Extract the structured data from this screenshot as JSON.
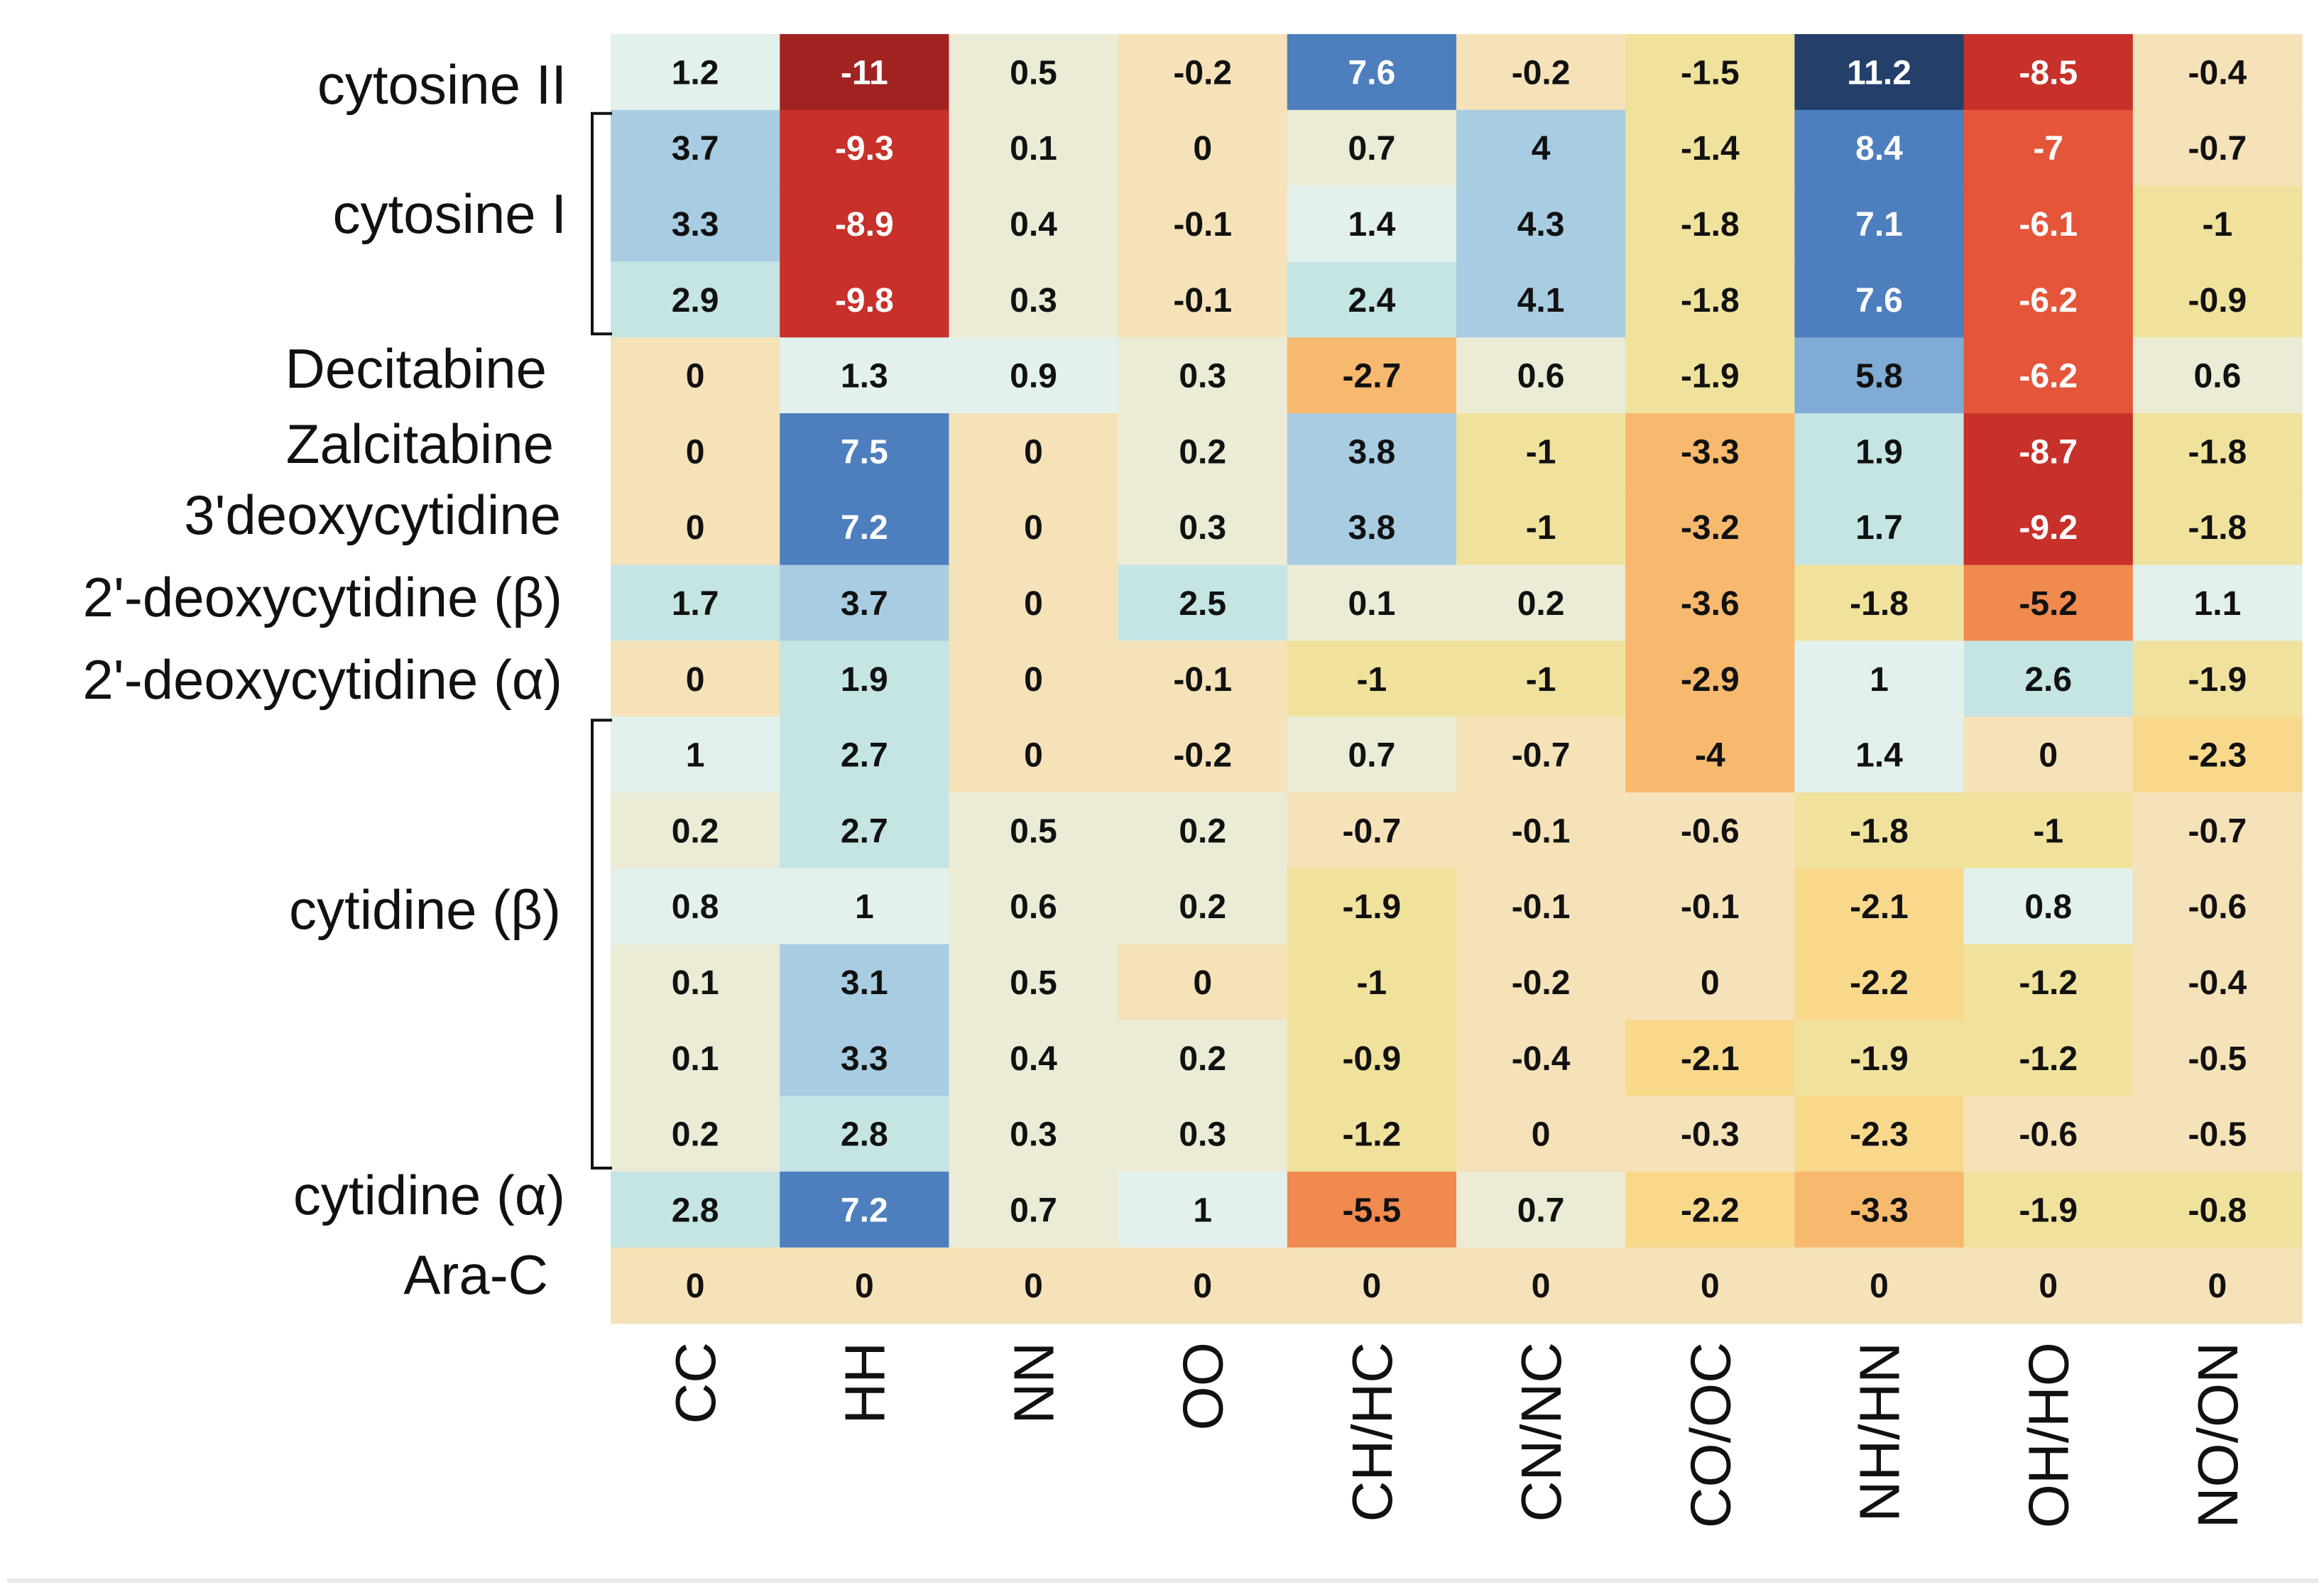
{
  "chart_data": {
    "type": "heatmap",
    "title": "",
    "columns": [
      "CC",
      "HH",
      "NN",
      "OO",
      "CH/HC",
      "CN/NC",
      "CO/OC",
      "NH/HN",
      "OH/HO",
      "NO/ON"
    ],
    "row_labels": [
      {
        "text": "cytosine II",
        "rows": [
          0
        ]
      },
      {
        "text": "cytosine I",
        "rows": [
          1,
          2,
          3
        ]
      },
      {
        "text": "Decitabine",
        "rows": [
          4
        ]
      },
      {
        "text": "Zalcitabine",
        "rows": [
          5
        ]
      },
      {
        "text": "3'deoxycytidine",
        "rows": [
          6
        ]
      },
      {
        "text": "2'-deoxycytidine (β)",
        "rows": [
          7
        ]
      },
      {
        "text": "2'-deoxycytidine (α)",
        "rows": [
          8
        ]
      },
      {
        "text": "cytidine (β)",
        "rows": [
          9,
          10,
          11,
          12,
          13,
          14
        ]
      },
      {
        "text": "cytidine (α)",
        "rows": [
          15
        ]
      },
      {
        "text": "Ara-C",
        "rows": [
          16
        ]
      }
    ],
    "values": [
      [
        1.2,
        -11,
        0.5,
        -0.2,
        7.6,
        -0.2,
        -1.5,
        11.2,
        -8.5,
        -0.4
      ],
      [
        3.7,
        -9.3,
        0.1,
        0,
        0.7,
        4,
        -1.4,
        8.4,
        -7,
        -0.7
      ],
      [
        3.3,
        -8.9,
        0.4,
        -0.1,
        1.4,
        4.3,
        -1.8,
        7.1,
        -6.1,
        -1
      ],
      [
        2.9,
        -9.8,
        0.3,
        -0.1,
        2.4,
        4.1,
        -1.8,
        7.6,
        -6.2,
        -0.9
      ],
      [
        0,
        1.3,
        0.9,
        0.3,
        -2.7,
        0.6,
        -1.9,
        5.8,
        -6.2,
        0.6
      ],
      [
        0,
        7.5,
        0,
        0.2,
        3.8,
        -1,
        -3.3,
        1.9,
        -8.7,
        -1.8
      ],
      [
        0,
        7.2,
        0,
        0.3,
        3.8,
        -1,
        -3.2,
        1.7,
        -9.2,
        -1.8
      ],
      [
        1.7,
        3.7,
        0,
        2.5,
        0.1,
        0.2,
        -3.6,
        -1.8,
        -5.2,
        1.1
      ],
      [
        0,
        1.9,
        0,
        -0.1,
        -1,
        -1,
        -2.9,
        1,
        2.6,
        -1.9
      ],
      [
        1,
        2.7,
        0,
        -0.2,
        0.7,
        -0.7,
        -4,
        1.4,
        0,
        -2.3
      ],
      [
        0.2,
        2.7,
        0.5,
        0.2,
        -0.7,
        -0.1,
        -0.6,
        -1.8,
        -1,
        -0.7
      ],
      [
        0.8,
        1,
        0.6,
        0.2,
        -1.9,
        -0.1,
        -0.1,
        -2.1,
        0.8,
        -0.6
      ],
      [
        0.1,
        3.1,
        0.5,
        0,
        -1,
        -0.2,
        0,
        -2.2,
        -1.2,
        -0.4
      ],
      [
        0.1,
        3.3,
        0.4,
        0.2,
        -0.9,
        -0.4,
        -2.1,
        -1.9,
        -1.2,
        -0.5
      ],
      [
        0.2,
        2.8,
        0.3,
        0.3,
        -1.2,
        0,
        -0.3,
        -2.3,
        -0.6,
        -0.5
      ],
      [
        2.8,
        7.2,
        0.7,
        1,
        -5.5,
        0.7,
        -2.2,
        -3.3,
        -1.9,
        -0.8
      ],
      [
        0,
        0,
        0,
        0,
        0,
        0,
        0,
        0,
        0,
        0
      ]
    ],
    "brackets": [
      {
        "label": "cytosine I",
        "rows": [
          1,
          3
        ]
      },
      {
        "label": "cytidine (β)",
        "rows": [
          9,
          14
        ]
      }
    ],
    "colormap": "diverging red-yellow-blue (negative red, zero beige, positive blue)",
    "color_range": [
      -11,
      11.2
    ]
  },
  "colors": {
    "neg_max": "#a0231f",
    "neg_high": "#c8302a",
    "neg_mid": "#e4553a",
    "neg_low": "#f08a4f",
    "neg_soft": "#f7b96e",
    "neg_faint": "#f8d98c",
    "neg_tint": "#f0e29c",
    "zero": "#f5e2b8",
    "pos_tint": "#ebebd6",
    "pos_faint": "#e3f1ec",
    "pos_soft": "#c5e4e4",
    "pos_low": "#a8cde2",
    "pos_mid": "#7fabd4",
    "pos_high": "#4d7fbf",
    "pos_max": "#233f6a"
  }
}
